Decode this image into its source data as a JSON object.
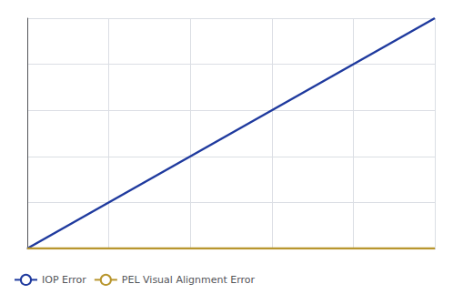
{
  "chart_data": {
    "type": "line",
    "x": [
      0,
      1
    ],
    "series": [
      {
        "name": "IOP Error",
        "color": "#1f3a9e",
        "values": [
          0,
          1
        ]
      },
      {
        "name": "PEL Visual Alignment Error",
        "color": "#b8962e",
        "values": [
          0.0,
          0.0
        ]
      }
    ],
    "xlim": [
      0,
      1
    ],
    "ylim": [
      0,
      1
    ],
    "xticks": [
      0.0,
      0.2,
      0.4,
      0.6,
      0.8,
      1.0
    ],
    "yticks": [
      0.0,
      0.2,
      0.4,
      0.6,
      0.8,
      1.0
    ],
    "grid": true,
    "tick_labels": false,
    "legend": "lower left"
  }
}
